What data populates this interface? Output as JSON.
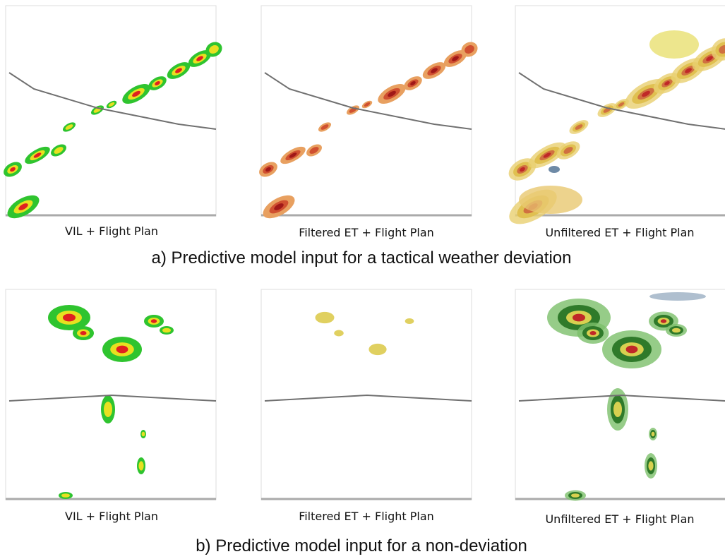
{
  "figure": {
    "rows": [
      {
        "panels": [
          {
            "label": "VIL + Flight Plan"
          },
          {
            "label": "Filtered ET + Flight Plan"
          },
          {
            "label": "Unfiltered ET + Flight Plan"
          }
        ],
        "caption": "a) Predictive model input for a tactical weather deviation"
      },
      {
        "panels": [
          {
            "label": "VIL + Flight Plan"
          },
          {
            "label": "Filtered ET + Flight Plan"
          },
          {
            "label": "Unfiltered ET + Flight Plan"
          }
        ],
        "caption": "b) Predictive model input for a non-deviation"
      }
    ]
  }
}
